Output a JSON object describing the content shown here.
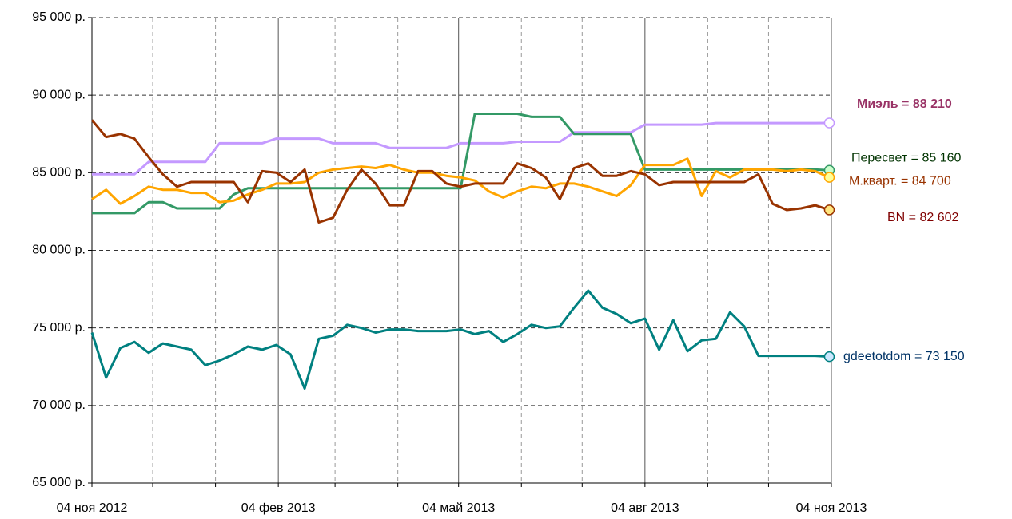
{
  "chart_data": {
    "type": "line",
    "x": [
      "2012-11-04",
      "2012-11-11",
      "2012-11-18",
      "2012-11-25",
      "2012-12-02",
      "2012-12-09",
      "2012-12-16",
      "2012-12-23",
      "2012-12-30",
      "2013-01-06",
      "2013-01-13",
      "2013-01-20",
      "2013-01-27",
      "2013-02-03",
      "2013-02-10",
      "2013-02-17",
      "2013-02-24",
      "2013-03-03",
      "2013-03-10",
      "2013-03-17",
      "2013-03-24",
      "2013-03-31",
      "2013-04-07",
      "2013-04-14",
      "2013-04-21",
      "2013-04-28",
      "2013-05-05",
      "2013-05-12",
      "2013-05-19",
      "2013-05-26",
      "2013-06-02",
      "2013-06-09",
      "2013-06-16",
      "2013-06-23",
      "2013-06-30",
      "2013-07-07",
      "2013-07-14",
      "2013-07-21",
      "2013-07-28",
      "2013-08-04",
      "2013-08-11",
      "2013-08-18",
      "2013-08-25",
      "2013-09-01",
      "2013-09-08",
      "2013-09-15",
      "2013-09-22",
      "2013-09-29",
      "2013-10-06",
      "2013-10-13",
      "2013-10-20",
      "2013-10-27",
      "2013-11-03"
    ],
    "xlim": [
      "2012-11-04",
      "2013-11-04"
    ],
    "xticks": [
      {
        "value": "2012-11-04",
        "label": "04 ноя 2012"
      },
      {
        "value": "2013-02-04",
        "label": "04 фев 2013"
      },
      {
        "value": "2013-05-04",
        "label": "04 май 2013"
      },
      {
        "value": "2013-08-04",
        "label": "04 авг 2013"
      },
      {
        "value": "2013-11-04",
        "label": "04 ноя 2013"
      }
    ],
    "x_minor_ticks": [
      "2012-12-04",
      "2013-01-04",
      "2013-03-04",
      "2013-04-04",
      "2013-06-04",
      "2013-07-04",
      "2013-09-04",
      "2013-10-04"
    ],
    "ylim": [
      65000,
      95000
    ],
    "yticks": [
      {
        "value": 65000,
        "label": "65 000 р."
      },
      {
        "value": 70000,
        "label": "70 000 р."
      },
      {
        "value": 75000,
        "label": "75 000 р."
      },
      {
        "value": 80000,
        "label": "80 000 р."
      },
      {
        "value": 85000,
        "label": "85 000 р."
      },
      {
        "value": 90000,
        "label": "90 000 р."
      },
      {
        "value": 95000,
        "label": "95 000 р."
      }
    ],
    "grid": true,
    "series": [
      {
        "name": "gdeetotdom",
        "color": "#008080",
        "marker_color": "#cce8ff",
        "label_color": "#003366",
        "end_label": "gdeetotdom = 73 150",
        "values": [
          74700,
          71800,
          73700,
          74100,
          73400,
          74000,
          73800,
          73600,
          72600,
          72900,
          73300,
          73800,
          73600,
          73900,
          73300,
          71100,
          74300,
          74500,
          75200,
          75000,
          74700,
          74900,
          74900,
          74800,
          74800,
          74800,
          74900,
          74600,
          74800,
          74100,
          74600,
          75200,
          75000,
          75100,
          76300,
          77400,
          76300,
          75900,
          75300,
          75600,
          73600,
          75500,
          73500,
          74200,
          74300,
          76000,
          75100,
          73200,
          73200,
          73200,
          73200,
          73200,
          73150
        ]
      },
      {
        "name": "Миэль",
        "color": "#c499ff",
        "marker_color": "#ffffff",
        "label_color": "#993366",
        "end_label": "Миэль = 88 210",
        "values": [
          84900,
          84900,
          84900,
          84900,
          85700,
          85700,
          85700,
          85700,
          85700,
          86900,
          86900,
          86900,
          86900,
          87200,
          87200,
          87200,
          87200,
          86900,
          86900,
          86900,
          86900,
          86600,
          86600,
          86600,
          86600,
          86600,
          86900,
          86900,
          86900,
          86900,
          87000,
          87000,
          87000,
          87000,
          87600,
          87600,
          87600,
          87600,
          87600,
          88100,
          88100,
          88100,
          88100,
          88100,
          88200,
          88200,
          88200,
          88200,
          88200,
          88200,
          88200,
          88200,
          88210
        ]
      },
      {
        "name": "Пересвет",
        "color": "#339966",
        "marker_color": "#ccffcc",
        "label_color": "#003300",
        "end_label": "Пересвет = 85 160",
        "values": [
          82400,
          82400,
          82400,
          82400,
          83100,
          83100,
          82700,
          82700,
          82700,
          82700,
          83600,
          84000,
          84000,
          84000,
          84000,
          84000,
          84000,
          84000,
          84000,
          84000,
          84000,
          84000,
          84000,
          84000,
          84000,
          84000,
          84000,
          88800,
          88800,
          88800,
          88800,
          88600,
          88600,
          88600,
          87500,
          87500,
          87500,
          87500,
          87500,
          85200,
          85200,
          85200,
          85200,
          85200,
          85200,
          85200,
          85200,
          85200,
          85200,
          85200,
          85200,
          85200,
          85160
        ]
      },
      {
        "name": "М.кварт.",
        "color": "#ffa500",
        "marker_color": "#ffff99",
        "label_color": "#993300",
        "end_label": "М.кварт. = 84 700",
        "values": [
          83300,
          83900,
          83000,
          83500,
          84100,
          83900,
          83900,
          83700,
          83700,
          83100,
          83200,
          83600,
          83900,
          84300,
          84300,
          84400,
          85000,
          85200,
          85300,
          85400,
          85300,
          85500,
          85200,
          85000,
          85000,
          84800,
          84700,
          84500,
          83800,
          83400,
          83800,
          84100,
          84000,
          84300,
          84300,
          84100,
          83800,
          83500,
          84200,
          85500,
          85500,
          85500,
          85900,
          83500,
          85100,
          84700,
          85200,
          85200,
          85200,
          85100,
          85200,
          85100,
          84700
        ]
      },
      {
        "name": "BN",
        "color": "#993300",
        "marker_color": "#ffe680",
        "label_color": "#800000",
        "end_label": "BN = 82 602",
        "values": [
          88400,
          87300,
          87500,
          87200,
          86000,
          84900,
          84100,
          84400,
          84400,
          84400,
          84400,
          83100,
          85100,
          85000,
          84400,
          85200,
          81800,
          82100,
          83900,
          85200,
          84300,
          82900,
          82900,
          85100,
          85100,
          84300,
          84100,
          84300,
          84300,
          84300,
          85600,
          85300,
          84700,
          83300,
          85300,
          85600,
          84800,
          84800,
          85100,
          84900,
          84200,
          84400,
          84400,
          84400,
          84400,
          84400,
          84400,
          84900,
          83000,
          82600,
          82700,
          82900,
          82602
        ]
      }
    ]
  }
}
